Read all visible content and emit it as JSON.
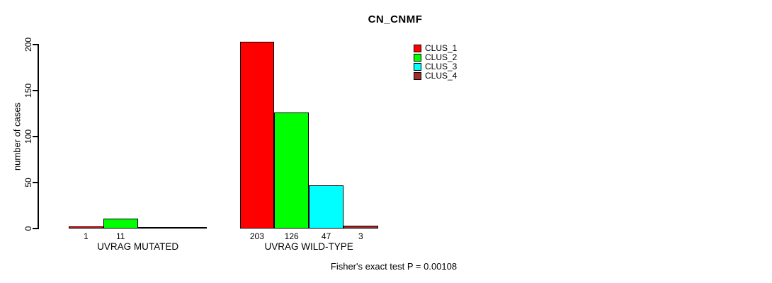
{
  "chart_data": {
    "type": "bar",
    "title": "CN_CNMF",
    "ylabel": "number of cases",
    "ylim": [
      0,
      200
    ],
    "yticks": [
      0,
      50,
      100,
      150,
      200
    ],
    "categories": [
      "UVRAG MUTATED",
      "UVRAG WILD-TYPE"
    ],
    "series": [
      {
        "name": "CLUS_1",
        "color": "#FF0000",
        "values": [
          1,
          203
        ]
      },
      {
        "name": "CLUS_2",
        "color": "#00FF00",
        "values": [
          11,
          126
        ]
      },
      {
        "name": "CLUS_3",
        "color": "#00FFFF",
        "values": [
          0,
          47
        ]
      },
      {
        "name": "CLUS_4",
        "color": "#A52A2A",
        "values": [
          0,
          3
        ]
      }
    ],
    "bar_value_labels_shown": true,
    "zero_value_labels_hidden": true,
    "grid": "off",
    "legend_position": "top-right",
    "annotation": "Fisher's exact test P = 0.00108"
  }
}
